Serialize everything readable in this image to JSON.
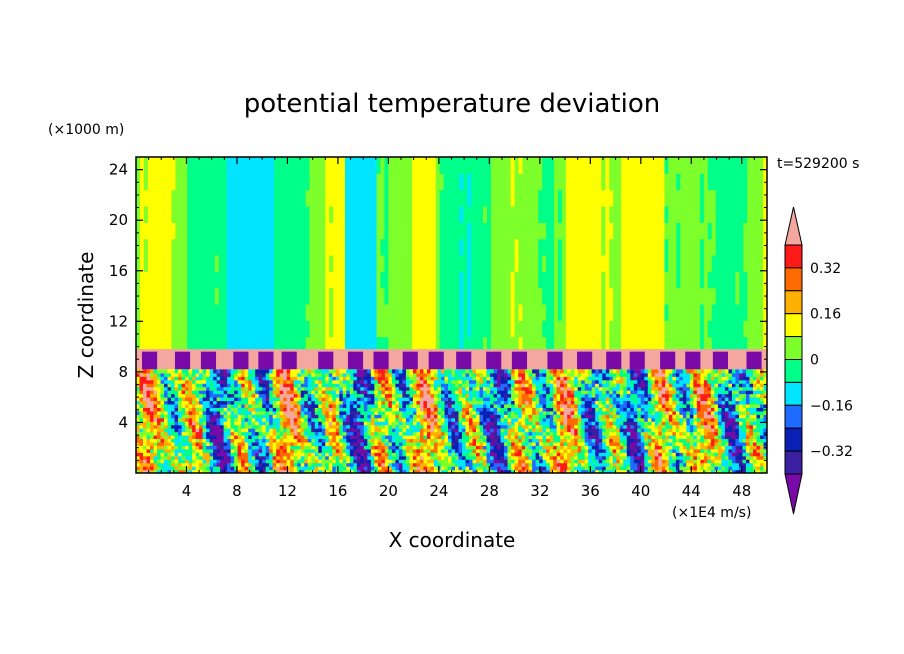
{
  "chart_data": {
    "type": "heatmap",
    "title": "potential temperature deviation",
    "xlabel": "X coordinate",
    "ylabel": "Z coordinate",
    "x_unit": "(×1E4 m/s)",
    "y_unit": "(×1000 m)",
    "time_label": "t=529200 s",
    "xlim": [
      0,
      50
    ],
    "ylim": [
      0,
      25
    ],
    "x_ticks": [
      "4",
      "8",
      "12",
      "16",
      "20",
      "24",
      "28",
      "32",
      "36",
      "40",
      "44",
      "48"
    ],
    "y_ticks": [
      "4",
      "8",
      "12",
      "16",
      "20",
      "24"
    ],
    "colorbar": {
      "labels": [
        "0.32",
        "0.16",
        "0",
        "−0.16",
        "−0.32"
      ],
      "levels": [
        -0.4,
        -0.32,
        -0.24,
        -0.16,
        -0.08,
        0,
        0.08,
        0.16,
        0.24,
        0.32,
        0.4
      ],
      "colors": [
        "#7a0aa8",
        "#3a1fa0",
        "#0a1fb4",
        "#1e6cff",
        "#00e5ff",
        "#00ff88",
        "#7cff2a",
        "#ffff00",
        "#ffb000",
        "#ff6a00",
        "#ff1a1a",
        "#f4a6a0"
      ]
    },
    "field_summary": {
      "upper_layer_z_range": [
        9.5,
        25
      ],
      "inversion_band_z_range": [
        8.2,
        9.8
      ],
      "mixed_layer_z_range": [
        0,
        8.2
      ]
    }
  }
}
